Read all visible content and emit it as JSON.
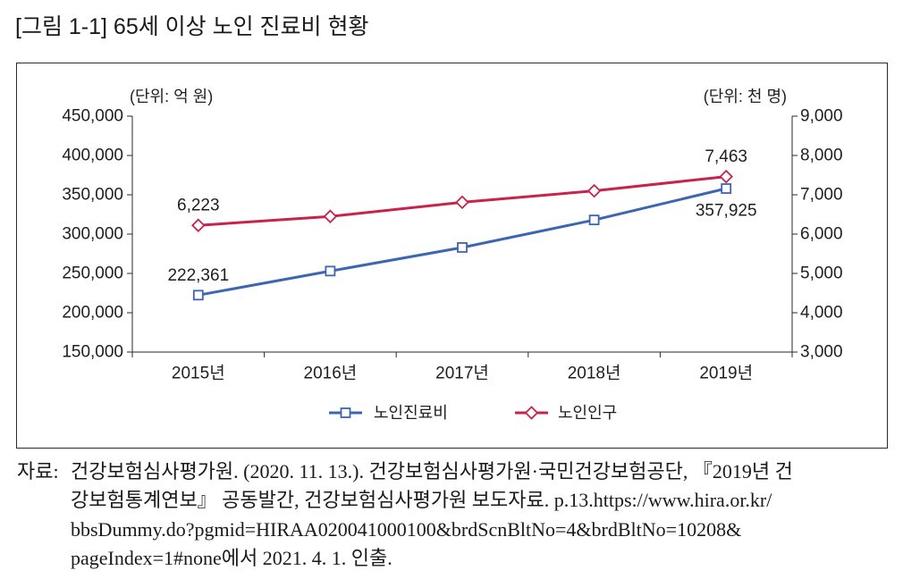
{
  "chart_data": {
    "type": "line",
    "title": "[그림 1-1] 65세 이상 노인 진료비 현황",
    "categories": [
      "2015년",
      "2016년",
      "2017년",
      "2018년",
      "2019년"
    ],
    "series": [
      {
        "name": "노인진료비",
        "axis": "left",
        "color": "#3c66b1",
        "marker": "square",
        "values": [
          222361,
          253000,
          283000,
          318000,
          357925
        ]
      },
      {
        "name": "노인인구",
        "axis": "right",
        "color": "#c8234a",
        "marker": "diamond",
        "values": [
          6223,
          6450,
          6810,
          7100,
          7463
        ]
      }
    ],
    "y_left": {
      "unit_label": "(단위: 억 원)",
      "min": 150000,
      "max": 450000,
      "ticks": [
        150000,
        200000,
        250000,
        300000,
        350000,
        400000,
        450000
      ],
      "tick_labels": [
        "150,000",
        "200,000",
        "250,000",
        "300,000",
        "350,000",
        "400,000",
        "450,000"
      ]
    },
    "y_right": {
      "unit_label": "(단위: 천 명)",
      "min": 3000,
      "max": 9000,
      "ticks": [
        3000,
        4000,
        5000,
        6000,
        7000,
        8000,
        9000
      ],
      "tick_labels": [
        "3,000",
        "4,000",
        "5,000",
        "6,000",
        "7,000",
        "8,000",
        "9,000"
      ]
    },
    "data_labels": [
      {
        "series": 1,
        "index": 0,
        "text": "6,223",
        "position": "above"
      },
      {
        "series": 1,
        "index": 4,
        "text": "7,463",
        "position": "above"
      },
      {
        "series": 0,
        "index": 0,
        "text": "222,361",
        "position": "above"
      },
      {
        "series": 0,
        "index": 4,
        "text": "357,925",
        "position": "below"
      }
    ],
    "legend": "bottom",
    "grid": false
  },
  "source": {
    "label": "자료:",
    "lines": [
      "건강보험심사평가원. (2020. 11. 13.). 건강보험심사평가원·국민건강보험공단, 『2019년 건",
      "강보험통계연보』 공동발간, 건강보험심사평가원 보도자료. p.13.https://www.hira.or.kr/",
      "bbsDummy.do?pgmid=HIRAA020041000100&brdScnBltNo=4&brdBltNo=10208&",
      "pageIndex=1#none에서 2021. 4. 1. 인출."
    ]
  }
}
